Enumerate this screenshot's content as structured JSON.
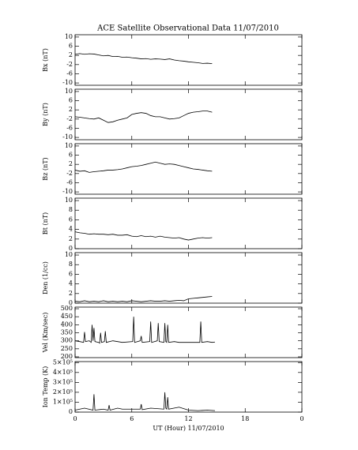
{
  "title": "ACE Satellite Observational Data   11/07/2010",
  "x_axis": {
    "xlim": [
      0,
      24
    ],
    "xticks": [
      0,
      6,
      12,
      18,
      {
        "value": 24,
        "label": "0"
      }
    ],
    "label": "UT (Hour)   11/07/2010"
  },
  "chart_data": [
    {
      "type": "line",
      "ylabel": "Bx (nT)",
      "color": "#000000",
      "ylim": [
        -11,
        11
      ],
      "yticks": [
        -10,
        -6,
        -2,
        2,
        6,
        10
      ],
      "x": [
        0,
        0.5,
        1,
        1.5,
        2,
        2.5,
        3,
        3.5,
        4,
        4.5,
        5,
        5.5,
        6,
        6.5,
        7,
        7.5,
        8,
        8.5,
        9,
        9.5,
        10,
        10.5,
        11,
        11.5,
        12,
        12.5,
        13,
        13.5,
        14,
        14.5
      ],
      "values": [
        2.5,
        2.8,
        2.5,
        2.7,
        2.6,
        2.2,
        1.8,
        2.0,
        1.5,
        1.6,
        1.2,
        1.3,
        1.0,
        0.8,
        0.5,
        0.6,
        0.3,
        0.5,
        0.4,
        0.2,
        0.5,
        0.0,
        -0.3,
        -0.5,
        -0.8,
        -1.0,
        -1.2,
        -1.5,
        -1.4,
        -1.6
      ]
    },
    {
      "type": "line",
      "ylabel": "By (nT)",
      "color": "#000000",
      "ylim": [
        -11,
        11
      ],
      "yticks": [
        -10,
        -6,
        -2,
        2,
        6,
        10
      ],
      "x": [
        0,
        0.5,
        1,
        1.5,
        2,
        2.5,
        3,
        3.5,
        4,
        4.5,
        5,
        5.5,
        6,
        6.5,
        7,
        7.5,
        8,
        8.5,
        9,
        9.5,
        10,
        10.5,
        11,
        11.5,
        12,
        12.5,
        13,
        13.5,
        14,
        14.5
      ],
      "values": [
        -1.0,
        -1.2,
        -1.5,
        -1.8,
        -2.0,
        -1.5,
        -2.5,
        -3.5,
        -3.2,
        -2.5,
        -2.0,
        -1.5,
        0.0,
        0.5,
        0.8,
        0.5,
        -0.5,
        -1.0,
        -1.0,
        -1.5,
        -2.0,
        -1.8,
        -1.5,
        -0.5,
        0.5,
        1.0,
        1.2,
        1.5,
        1.5,
        1.0
      ]
    },
    {
      "type": "line",
      "ylabel": "Bz (nT)",
      "color": "#000000",
      "ylim": [
        -11,
        11
      ],
      "yticks": [
        -10,
        -6,
        -2,
        2,
        6,
        10
      ],
      "x": [
        0,
        0.5,
        1,
        1.5,
        2,
        2.5,
        3,
        3.5,
        4,
        4.5,
        5,
        5.5,
        6,
        6.5,
        7,
        7.5,
        8,
        8.5,
        9,
        9.5,
        10,
        10.5,
        11,
        11.5,
        12,
        12.5,
        13,
        13.5,
        14,
        14.5
      ],
      "values": [
        -0.5,
        -1.0,
        -0.8,
        -1.5,
        -1.2,
        -1.0,
        -0.8,
        -0.5,
        -0.5,
        -0.3,
        0.0,
        0.5,
        1.0,
        1.2,
        1.5,
        2.0,
        2.5,
        3.0,
        2.5,
        2.0,
        2.2,
        2.0,
        1.5,
        1.0,
        0.5,
        0.0,
        -0.2,
        -0.5,
        -0.8,
        -1.0
      ]
    },
    {
      "type": "line",
      "ylabel": "Bt (nT)",
      "color": "#000000",
      "ylim": [
        0,
        10.5
      ],
      "yticks": [
        0,
        2,
        4,
        6,
        8,
        10
      ],
      "x": [
        0,
        0.5,
        1,
        1.5,
        2,
        2.5,
        3,
        3.5,
        4,
        4.5,
        5,
        5.5,
        6,
        6.5,
        7,
        7.5,
        8,
        8.5,
        9,
        9.5,
        10,
        10.5,
        11,
        11.5,
        12,
        12.5,
        13,
        13.5,
        14,
        14.5
      ],
      "values": [
        3.5,
        3.3,
        3.2,
        3.0,
        3.1,
        3.0,
        3.0,
        2.9,
        3.0,
        2.8,
        2.8,
        2.9,
        2.6,
        2.5,
        2.7,
        2.5,
        2.6,
        2.4,
        2.6,
        2.4,
        2.3,
        2.2,
        2.3,
        2.0,
        1.8,
        2.0,
        2.2,
        2.3,
        2.2,
        2.3
      ]
    },
    {
      "type": "line",
      "ylabel": "Den (1/cc)",
      "color": "#000000",
      "ylim": [
        0,
        10.5
      ],
      "yticks": [
        0,
        2,
        4,
        6,
        8,
        10
      ],
      "x": [
        0,
        0.5,
        1,
        1.5,
        2,
        2.5,
        3,
        3.5,
        4,
        4.5,
        5,
        5.5,
        6,
        6.5,
        7,
        7.5,
        8,
        8.5,
        9,
        9.5,
        10,
        10.5,
        11,
        11.5,
        12,
        12.5,
        13,
        13.5,
        14,
        14.5
      ],
      "values": [
        0.4,
        0.3,
        0.5,
        0.3,
        0.4,
        0.3,
        0.5,
        0.3,
        0.4,
        0.3,
        0.4,
        0.3,
        0.5,
        0.4,
        0.3,
        0.4,
        0.5,
        0.4,
        0.4,
        0.5,
        0.4,
        0.5,
        0.6,
        0.5,
        0.9,
        1.0,
        1.1,
        1.2,
        1.3,
        1.4
      ]
    },
    {
      "type": "line",
      "ylabel": "Vel (Km/sec)",
      "color": "#000000",
      "ylim": [
        195,
        510
      ],
      "yticks": [
        200,
        250,
        300,
        350,
        400,
        450,
        500
      ],
      "x": [
        0,
        0.5,
        0.9,
        1.0,
        1.1,
        1.5,
        1.7,
        1.8,
        1.9,
        2.0,
        2.1,
        2.5,
        2.6,
        2.7,
        2.8,
        3.1,
        3.2,
        3.3,
        4,
        5,
        6.1,
        6.2,
        6.3,
        6.9,
        7.0,
        7.1,
        7.9,
        8.0,
        8.1,
        8.7,
        8.8,
        8.9,
        9.4,
        9.5,
        9.6,
        9.7,
        9.8,
        9.9,
        10.5,
        11,
        12,
        13.2,
        13.3,
        13.4,
        14,
        14.5,
        14.8
      ],
      "values": [
        300,
        295,
        290,
        355,
        295,
        300,
        290,
        400,
        300,
        380,
        295,
        290,
        285,
        350,
        290,
        295,
        360,
        290,
        300,
        290,
        295,
        450,
        290,
        300,
        330,
        290,
        295,
        420,
        290,
        300,
        410,
        295,
        290,
        410,
        295,
        290,
        400,
        290,
        295,
        290,
        290,
        290,
        420,
        290,
        295,
        290,
        292
      ]
    },
    {
      "type": "line",
      "ylabel": "Ion Temp (K)",
      "color": "#000000",
      "ylim": [
        0,
        510000
      ],
      "yticks": [
        0,
        {
          "value": 100000,
          "label": "1×10⁵"
        },
        {
          "value": 200000,
          "label": "2×10⁵"
        },
        {
          "value": 300000,
          "label": "3×10⁵"
        },
        {
          "value": 400000,
          "label": "4×10⁵"
        },
        {
          "value": 500000,
          "label": "5×10⁵"
        }
      ],
      "x": [
        0,
        1,
        1.9,
        2.0,
        2.1,
        3,
        3.5,
        3.6,
        3.7,
        4.5,
        5,
        6.9,
        7.0,
        7.1,
        8,
        9.4,
        9.5,
        9.6,
        9.7,
        9.8,
        9.9,
        11,
        12,
        13,
        14,
        14.8
      ],
      "values": [
        20000,
        40000,
        20000,
        180000,
        20000,
        30000,
        20000,
        70000,
        20000,
        40000,
        30000,
        30000,
        80000,
        25000,
        40000,
        30000,
        200000,
        40000,
        30000,
        150000,
        30000,
        50000,
        20000,
        15000,
        20000,
        15000
      ]
    }
  ]
}
